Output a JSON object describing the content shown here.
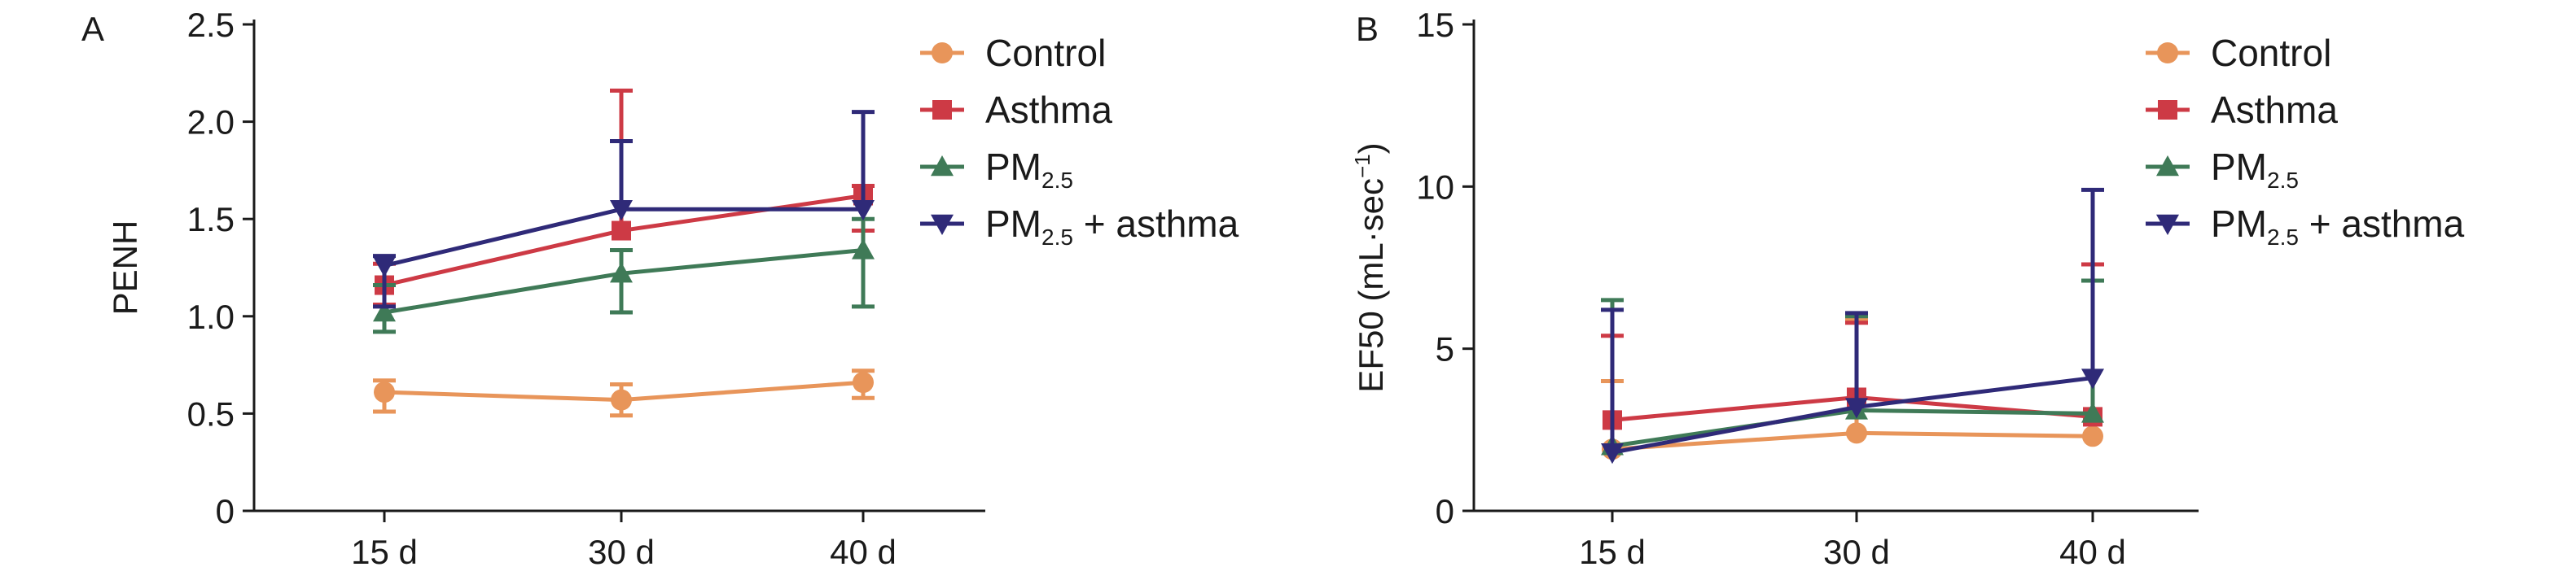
{
  "chart_data": [
    {
      "type": "line",
      "panel_label": "A",
      "categories": [
        "15 d",
        "30 d",
        "40 d"
      ],
      "ylabel": "PENH",
      "ylim": [
        0,
        2.5
      ],
      "yticks": [
        "0",
        "0.5",
        "1.0",
        "1.5",
        "2.0",
        "2.5"
      ],
      "legend_position": "top-right",
      "series": [
        {
          "name": "Control",
          "color": "#e8955a",
          "marker": "circle",
          "values": [
            0.61,
            0.57,
            0.66
          ],
          "err_low": [
            0.1,
            0.08,
            0.08
          ],
          "err_high": [
            0.06,
            0.08,
            0.06
          ]
        },
        {
          "name": "Asthma",
          "color": "#cd3a45",
          "marker": "square",
          "values": [
            1.16,
            1.44,
            1.62
          ],
          "err_low": [
            0.1,
            0.0,
            0.18
          ],
          "err_high": [
            0.11,
            0.72,
            0.05
          ]
        },
        {
          "name": "PM2.5",
          "color": "#3f7a57",
          "marker": "triangle-up",
          "values": [
            1.02,
            1.22,
            1.34
          ],
          "err_low": [
            0.1,
            0.2,
            0.29
          ],
          "err_high": [
            0.14,
            0.12,
            0.16
          ]
        },
        {
          "name": "PM2.5 + asthma",
          "color": "#2f2a78",
          "marker": "triangle-down",
          "values": [
            1.26,
            1.55,
            1.55
          ],
          "err_low": [
            0.21,
            0.0,
            0.0
          ],
          "err_high": [
            0.05,
            0.35,
            0.5
          ]
        }
      ]
    },
    {
      "type": "line",
      "panel_label": "B",
      "categories": [
        "15 d",
        "30 d",
        "40 d"
      ],
      "ylabel": "EF50 (mL·sec",
      "ylabel_sup": "−1",
      "ylabel_close": ")",
      "ylim": [
        0,
        15
      ],
      "yticks": [
        "0",
        "5",
        "10",
        "15"
      ],
      "legend_position": "top-right",
      "series": [
        {
          "name": "Control",
          "color": "#e8955a",
          "marker": "circle",
          "values": [
            1.9,
            2.4,
            2.3
          ],
          "err_low": [
            0,
            0,
            0
          ],
          "err_high": [
            2.1,
            3.5,
            4.8
          ]
        },
        {
          "name": "Asthma",
          "color": "#cd3a45",
          "marker": "square",
          "values": [
            2.8,
            3.5,
            2.9
          ],
          "err_low": [
            0,
            0,
            0
          ],
          "err_high": [
            2.6,
            2.3,
            4.7
          ]
        },
        {
          "name": "PM2.5",
          "color": "#3f7a57",
          "marker": "triangle-up",
          "values": [
            2.0,
            3.1,
            3.0
          ],
          "err_low": [
            0,
            0,
            0
          ],
          "err_high": [
            4.5,
            2.9,
            4.1
          ]
        },
        {
          "name": "PM2.5 + asthma",
          "color": "#2f2a78",
          "marker": "triangle-down",
          "values": [
            1.8,
            3.2,
            4.1
          ],
          "err_low": [
            0,
            0,
            0
          ],
          "err_high": [
            4.4,
            2.9,
            5.8
          ]
        }
      ]
    }
  ]
}
